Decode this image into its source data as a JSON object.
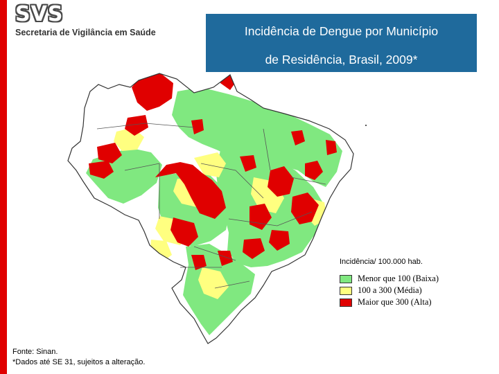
{
  "header": {
    "logo_mark": "SVS",
    "logo_text": "Secretaria de Vigilância em Saúde",
    "title_line1": "Incidência de Dengue por Município",
    "title_line2": "de Residência, Brasil, 2009*"
  },
  "legend": {
    "title": "Incidência/ 100.000 hab.",
    "items": [
      {
        "label": "Menor que 100 (Baixa)",
        "color": "#80e880"
      },
      {
        "label": "100 a 300 (Média)",
        "color": "#ffff80"
      },
      {
        "label": "Maior que 300 (Alta)",
        "color": "#e00000"
      }
    ]
  },
  "footer": {
    "source": "Fonte: Sinan.",
    "note": "*Dados até SE 31, sujeitos a alteração."
  },
  "colors": {
    "accent_bar": "#e00000",
    "title_box": "#1f6a9c",
    "low": "#80e880",
    "medium": "#ffff80",
    "high": "#e00000"
  }
}
